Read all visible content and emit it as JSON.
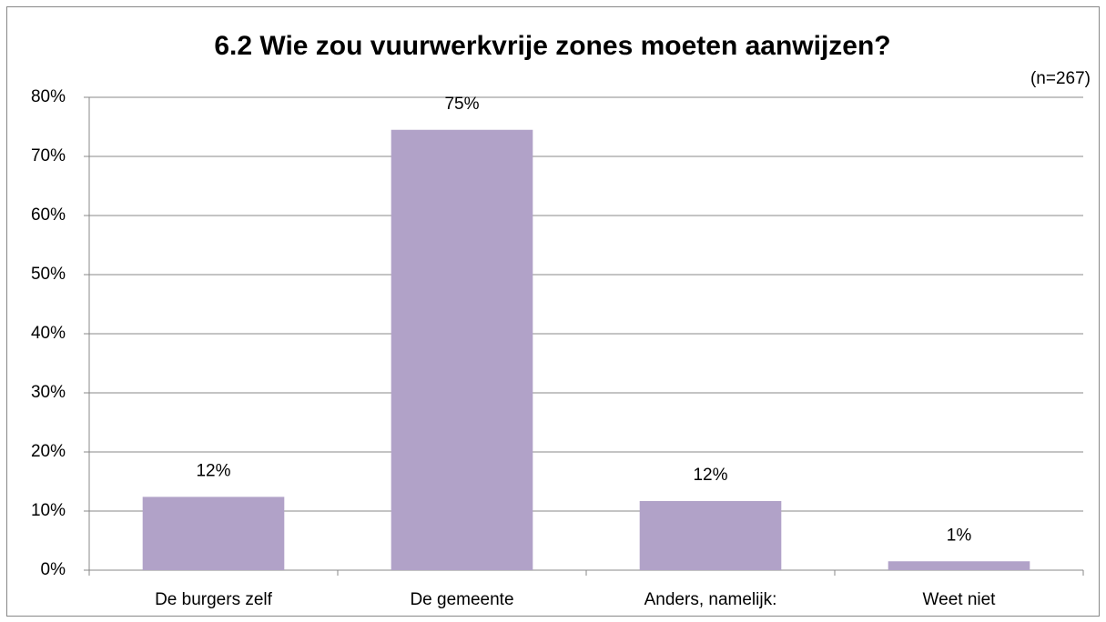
{
  "chart_data": {
    "type": "bar",
    "title": "6.2 Wie zou vuurwerkvrije zones moeten aanwijzen?",
    "subtitle": "(n=267)",
    "categories": [
      "De burgers zelf",
      "De gemeente",
      "Anders, namelijk:",
      "Weet niet"
    ],
    "values": [
      12.4,
      74.5,
      11.7,
      1.5
    ],
    "value_labels": [
      "12%",
      "75%",
      "12%",
      "1%"
    ],
    "color": "#b1a2c8",
    "ylim": [
      0,
      80
    ],
    "yticks": [
      {
        "value": 0,
        "label": "0%"
      },
      {
        "value": 10,
        "label": "10%"
      },
      {
        "value": 20,
        "label": "20%"
      },
      {
        "value": 30,
        "label": "30%"
      },
      {
        "value": 40,
        "label": "40%"
      },
      {
        "value": 50,
        "label": "50%"
      },
      {
        "value": 60,
        "label": "60%"
      },
      {
        "value": 70,
        "label": "70%"
      },
      {
        "value": 80,
        "label": "80%"
      }
    ],
    "grid": true
  }
}
